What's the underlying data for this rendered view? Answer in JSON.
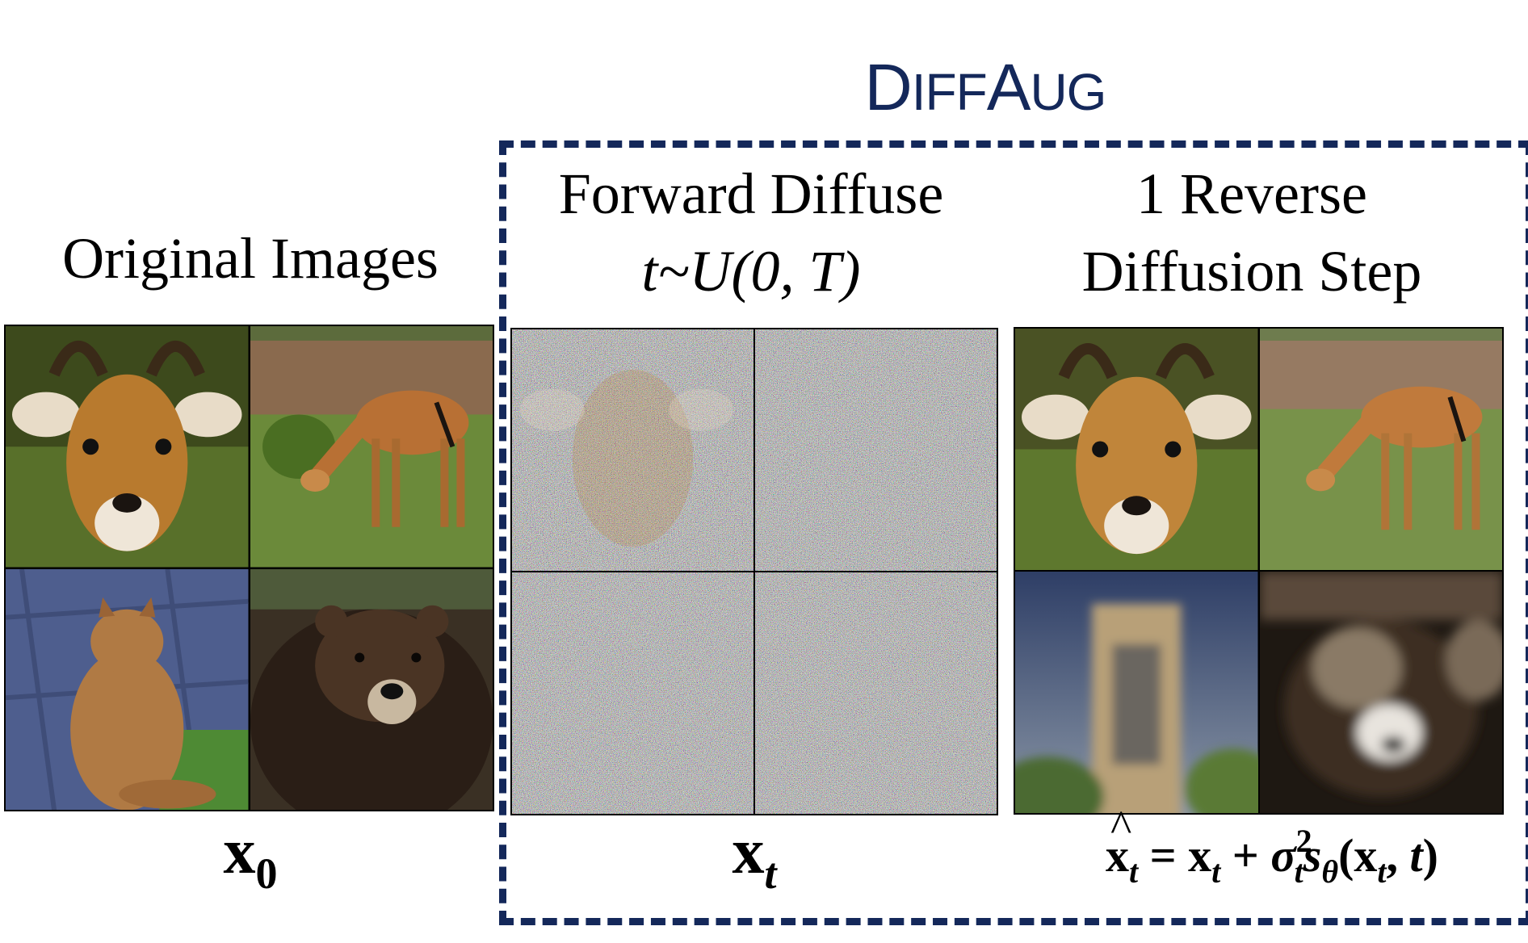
{
  "title": {
    "main": "D",
    "rest_sc_1": "IFF",
    "mid": "A",
    "rest_sc_2": "UG"
  },
  "columns": {
    "original": {
      "heading": "Original Images",
      "caption_base": "x",
      "caption_sub": "0"
    },
    "forward": {
      "heading_line1": "Forward Diffuse",
      "heading_line2": "t~U(0, T)",
      "caption_base": "x",
      "caption_sub": "t"
    },
    "reverse": {
      "heading_line1": "1 Reverse",
      "heading_line2": "Diffusion Step",
      "formula": {
        "lhs": "x",
        "lhs_sub": "t",
        "eq": " = ",
        "t1": "x",
        "t1_sub": "t",
        "plus": " + ",
        "sigma": "σ",
        "sigma_sup": "2",
        "sigma_sub": "t",
        "s": "s",
        "s_sub": "θ",
        "args_open": "(",
        "arg_x": "x",
        "arg_x_sub": "t",
        "args_sep": ", ",
        "arg_t": "t",
        "args_close": ")"
      }
    }
  },
  "colors": {
    "accent_navy": "#14285a"
  }
}
